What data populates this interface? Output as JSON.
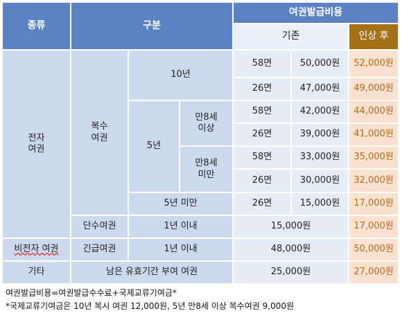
{
  "header": {
    "type_col": "종류",
    "division_col": "구분",
    "fee_col": "여권발급비용",
    "current_col": "기존",
    "after_col": "인상 후"
  },
  "rows": {
    "electronic": "전자\n여권",
    "multiple": "복수\n여권",
    "ten_year": "10년",
    "five_year": "5년",
    "age8_over": "만8세\n이상",
    "age8_under": "만8세\n미만",
    "under5": "5년 미만",
    "single": "단수여권",
    "within1_a": "1년 이내",
    "non_electronic": "비전자 여권",
    "emergency": "긴급여권",
    "within1_b": "1년 이내",
    "other": "기타",
    "remaining": "남은 유효기간 부여 여권"
  },
  "fees": [
    {
      "pages": "58면",
      "current": "50,000원",
      "after": "52,000원"
    },
    {
      "pages": "26면",
      "current": "47,000원",
      "after": "49,000원"
    },
    {
      "pages": "58면",
      "current": "42,000원",
      "after": "44,000원"
    },
    {
      "pages": "26면",
      "current": "39,000원",
      "after": "41,000원"
    },
    {
      "pages": "58면",
      "current": "33,000원",
      "after": "35,000원"
    },
    {
      "pages": "26면",
      "current": "30,000원",
      "after": "32,000원"
    },
    {
      "pages": "26면",
      "current": "15,000원",
      "after": "17,000원"
    },
    {
      "pages": "",
      "current": "15,000원",
      "after": "17,000원"
    },
    {
      "pages": "",
      "current": "48,000원",
      "after": "50,000원"
    },
    {
      "pages": "",
      "current": "25,000원",
      "after": "27,000원"
    }
  ],
  "notes": {
    "line1": "여권발급비용=여권발급수수료+국제교류기여금*",
    "line2": "*국제교류기여금은 10년 복시 여권 12,000원, 5년 만8세 이상 복수여권 9,000원"
  }
}
